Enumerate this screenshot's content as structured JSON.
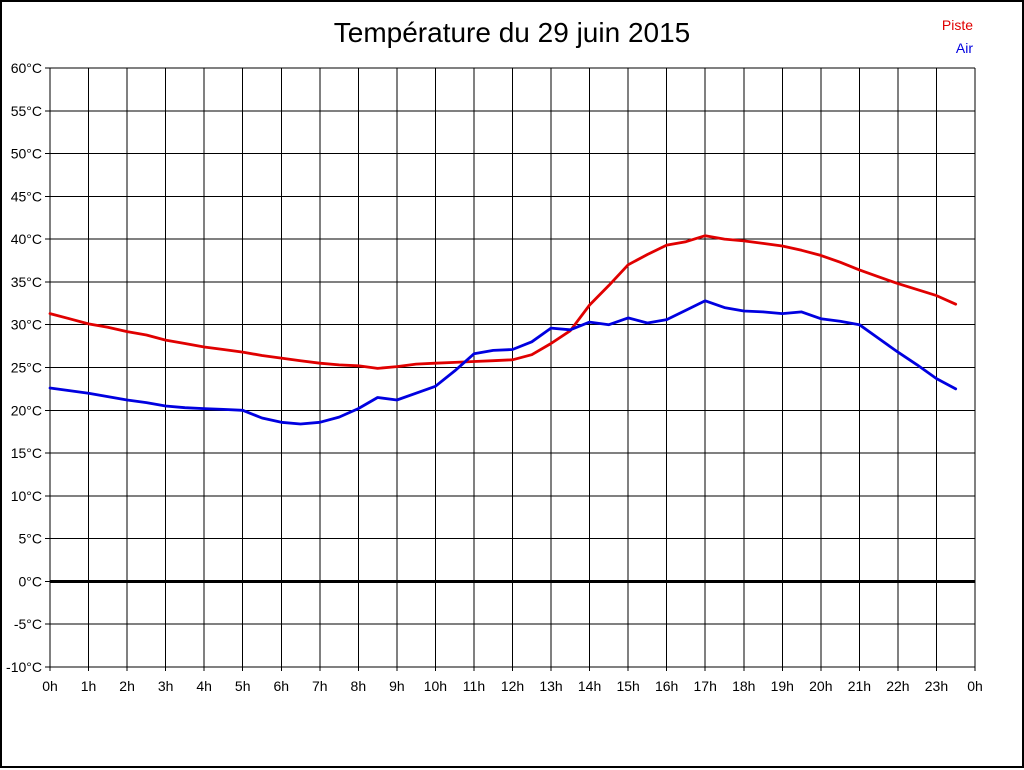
{
  "chart_data": {
    "type": "line",
    "title": "Température du 29 juin 2015",
    "xlabel": "",
    "ylabel": "",
    "xlim": [
      0,
      24
    ],
    "ylim": [
      -10,
      60
    ],
    "grid": true,
    "zero_line_bold": true,
    "legend_position": "top-right",
    "x_tick_labels": [
      "0h",
      "1h",
      "2h",
      "3h",
      "4h",
      "5h",
      "6h",
      "7h",
      "8h",
      "9h",
      "10h",
      "11h",
      "12h",
      "13h",
      "14h",
      "15h",
      "16h",
      "17h",
      "18h",
      "19h",
      "20h",
      "21h",
      "22h",
      "23h",
      "0h"
    ],
    "y_tick_labels": [
      "60°C",
      "55°C",
      "50°C",
      "45°C",
      "40°C",
      "35°C",
      "30°C",
      "25°C",
      "20°C",
      "15°C",
      "10°C",
      "5°C",
      "0°C",
      "-5°C",
      "-10°C"
    ],
    "x": [
      0,
      0.5,
      1,
      1.5,
      2,
      2.5,
      3,
      3.5,
      4,
      4.5,
      5,
      5.5,
      6,
      6.5,
      7,
      7.5,
      8,
      8.5,
      9,
      9.5,
      10,
      10.5,
      11,
      11.5,
      12,
      12.5,
      13,
      13.5,
      14,
      14.5,
      15,
      15.5,
      16,
      16.5,
      17,
      17.5,
      18,
      18.5,
      19,
      19.5,
      20,
      20.5,
      21,
      21.5,
      22,
      22.5,
      23,
      23.5
    ],
    "series": [
      {
        "name": "Piste",
        "color": "#e00000",
        "values": [
          31.3,
          30.7,
          30.1,
          29.7,
          29.2,
          28.8,
          28.2,
          27.8,
          27.4,
          27.1,
          26.8,
          26.4,
          26.1,
          25.8,
          25.5,
          25.3,
          25.2,
          24.9,
          25.1,
          25.4,
          25.5,
          25.6,
          25.7,
          25.8,
          25.9,
          26.5,
          27.8,
          29.3,
          32.3,
          34.6,
          37.0,
          38.2,
          39.3,
          39.7,
          40.4,
          40.0,
          39.8,
          39.5,
          39.2,
          38.7,
          38.1,
          37.3,
          36.4,
          35.6,
          34.8,
          34.1,
          33.4,
          32.4
        ]
      },
      {
        "name": "Air",
        "color": "#0000e0",
        "values": [
          22.6,
          22.3,
          22.0,
          21.6,
          21.2,
          20.9,
          20.5,
          20.3,
          20.2,
          20.1,
          20.0,
          19.1,
          18.6,
          18.4,
          18.6,
          19.2,
          20.2,
          21.5,
          21.2,
          22.0,
          22.8,
          24.6,
          26.6,
          27.0,
          27.1,
          28.0,
          29.6,
          29.4,
          30.3,
          30.0,
          30.8,
          30.2,
          30.6,
          31.7,
          32.8,
          32.0,
          31.6,
          31.5,
          31.3,
          31.5,
          30.7,
          30.4,
          30.0,
          28.4,
          26.8,
          25.3,
          23.7,
          22.5
        ]
      }
    ]
  }
}
